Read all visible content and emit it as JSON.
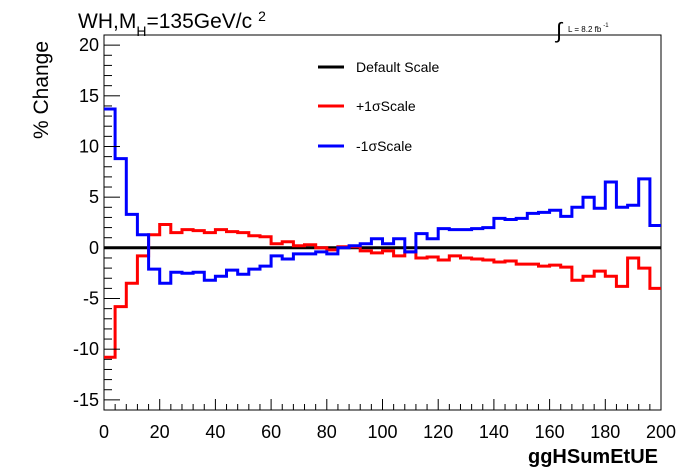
{
  "chart_data": {
    "type": "line",
    "title": "WH,M",
    "title_sub": "H",
    "title_rest": "=135GeV/c",
    "title_sup": "2",
    "lumi_label": "L = 8.2 fb",
    "lumi_sup": "-1",
    "xlabel": "ggHSumEtUE",
    "ylabel": "% Change",
    "xlim": [
      0,
      200
    ],
    "ylim": [
      -16,
      21
    ],
    "xticks": [
      0,
      20,
      40,
      60,
      80,
      100,
      120,
      140,
      160,
      180,
      200
    ],
    "yticks": [
      -15,
      -10,
      -5,
      0,
      5,
      10,
      15,
      20
    ],
    "grid": false,
    "legend_position": "top-center",
    "bin_edges": [
      0,
      4,
      8,
      12,
      16,
      20,
      24,
      28,
      32,
      36,
      40,
      44,
      48,
      52,
      56,
      60,
      64,
      68,
      72,
      76,
      80,
      84,
      88,
      92,
      96,
      100,
      104,
      108,
      112,
      116,
      120,
      124,
      128,
      132,
      136,
      140,
      144,
      148,
      152,
      156,
      160,
      164,
      168,
      172,
      176,
      180,
      184,
      188,
      192,
      196,
      200
    ],
    "series": [
      {
        "name": "Default Scale",
        "color": "#000000",
        "values": [
          0,
          0,
          0,
          0,
          0,
          0,
          0,
          0,
          0,
          0,
          0,
          0,
          0,
          0,
          0,
          0,
          0,
          0,
          0,
          0,
          0,
          0,
          0,
          0,
          0,
          0,
          0,
          0,
          0,
          0,
          0,
          0,
          0,
          0,
          0,
          0,
          0,
          0,
          0,
          0,
          0,
          0,
          0,
          0,
          0,
          0,
          0,
          0,
          0,
          0
        ]
      },
      {
        "name": "+1σScale",
        "color": "#ff0000",
        "values": [
          -10.8,
          -5.8,
          -3.5,
          -0.8,
          1.3,
          2.3,
          1.5,
          1.8,
          1.7,
          1.5,
          1.8,
          1.6,
          1.5,
          1.2,
          1.1,
          0.4,
          0.6,
          0.2,
          0.3,
          0.0,
          -0.2,
          0.1,
          0.1,
          -0.3,
          -0.5,
          -0.3,
          -0.8,
          -0.4,
          -1.0,
          -0.9,
          -1.2,
          -0.8,
          -1.0,
          -1.1,
          -1.2,
          -1.4,
          -1.3,
          -1.6,
          -1.6,
          -1.8,
          -1.7,
          -1.9,
          -3.2,
          -2.8,
          -2.3,
          -2.8,
          -3.8,
          -1.0,
          -2.0,
          -4.0
        ]
      },
      {
        "name": "-1σScale",
        "color": "#0000ff",
        "values": [
          13.7,
          8.8,
          3.3,
          1.3,
          -2.1,
          -3.5,
          -2.4,
          -2.5,
          -2.4,
          -3.2,
          -2.8,
          -2.2,
          -2.6,
          -2.1,
          -1.8,
          -0.8,
          -1.1,
          -0.6,
          -0.6,
          -0.4,
          -0.6,
          0.0,
          0.2,
          0.4,
          0.9,
          0.4,
          0.9,
          -0.4,
          1.4,
          0.9,
          1.9,
          1.8,
          1.8,
          1.9,
          2.0,
          2.9,
          2.8,
          2.9,
          3.4,
          3.5,
          3.7,
          3.1,
          4.0,
          5.0,
          3.9,
          6.5,
          4.0,
          4.2,
          6.8,
          2.2
        ]
      }
    ]
  }
}
